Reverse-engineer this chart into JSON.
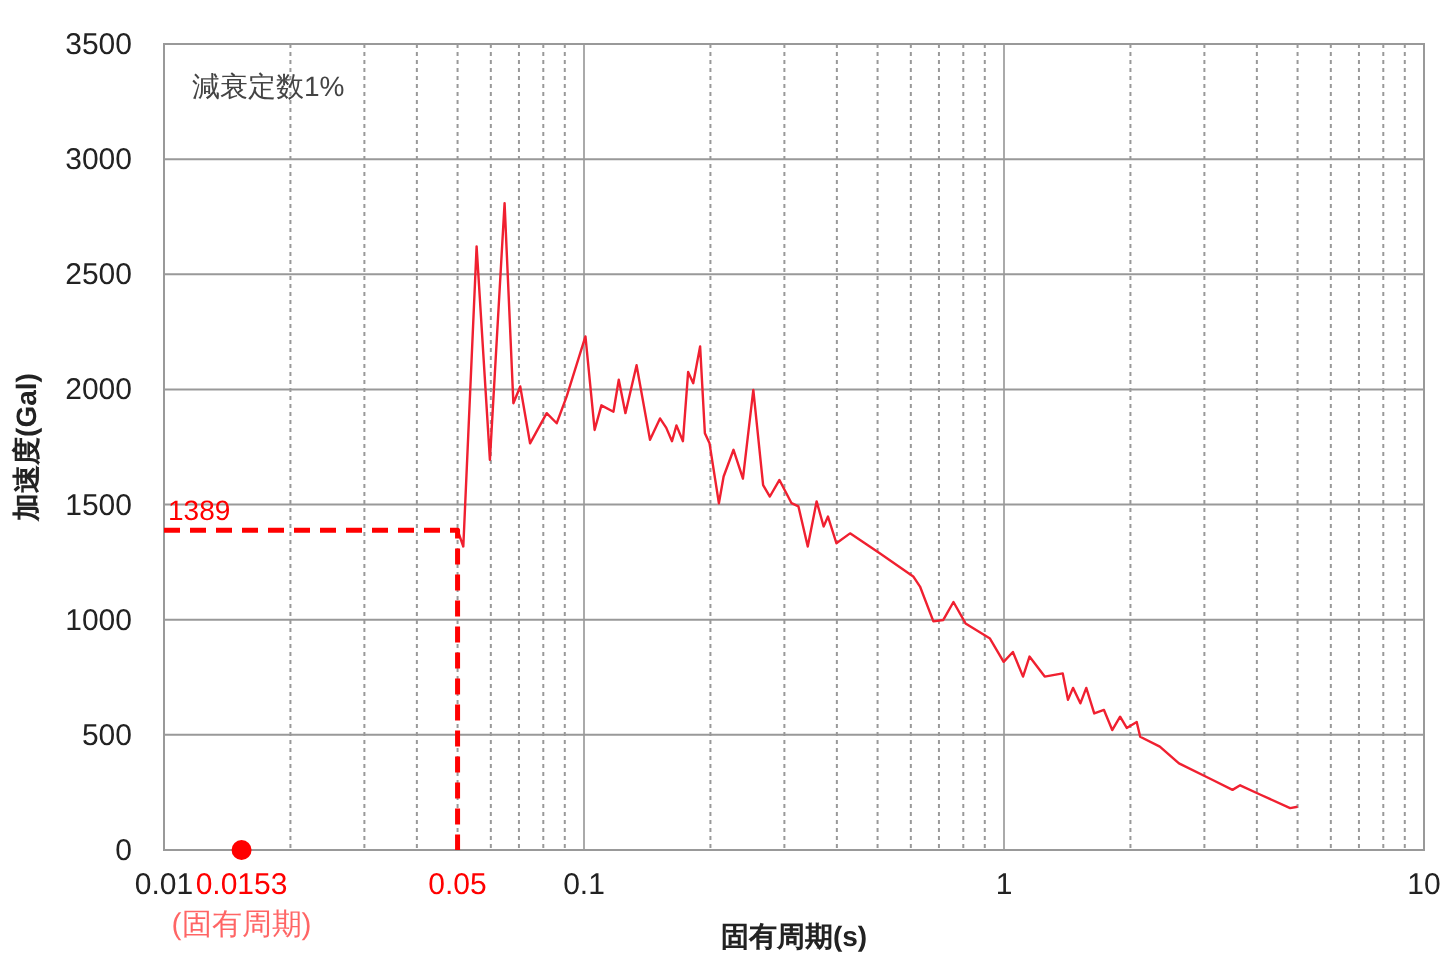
{
  "chart_data": {
    "type": "line",
    "xlabel": "固有周期(s)",
    "ylabel": "加速度(Gal)",
    "log": "x",
    "grid": true,
    "xlim": [
      0.01,
      10
    ],
    "ylim": [
      0,
      3500
    ],
    "xticks": [
      0.01,
      {
        "value": 0.02,
        "label": null
      },
      {
        "value": 0.03,
        "label": null
      },
      {
        "value": 0.04,
        "label": null
      },
      {
        "value": 0.05,
        "label": null
      },
      {
        "value": 0.06,
        "label": null
      },
      {
        "value": 0.07,
        "label": null
      },
      {
        "value": 0.08,
        "label": null
      },
      {
        "value": 0.09,
        "label": null
      },
      0.1,
      {
        "value": 0.2,
        "label": null
      },
      {
        "value": 0.3,
        "label": null
      },
      {
        "value": 0.4,
        "label": null
      },
      {
        "value": 0.5,
        "label": null
      },
      {
        "value": 0.6,
        "label": null
      },
      {
        "value": 0.7,
        "label": null
      },
      {
        "value": 0.8,
        "label": null
      },
      {
        "value": 0.9,
        "label": null
      },
      1,
      {
        "value": 2,
        "label": null
      },
      {
        "value": 3,
        "label": null
      },
      {
        "value": 4,
        "label": null
      },
      {
        "value": 5,
        "label": null
      },
      {
        "value": 6,
        "label": null
      },
      {
        "value": 7,
        "label": null
      },
      {
        "value": 8,
        "label": null
      },
      {
        "value": 9,
        "label": null
      },
      10
    ],
    "yticks": [
      0,
      500,
      1000,
      1500,
      2000,
      2500,
      3000,
      3500
    ],
    "annotations": [
      "減衰定数1%",
      {
        "text": "1389",
        "x": 0.01,
        "y": 1389
      },
      {
        "text": "0.0153",
        "x": 0.0153,
        "y": 0
      },
      {
        "text": "(固有周期)",
        "x": 0.0153,
        "y": 0
      },
      {
        "text": "0.05",
        "x": 0.05,
        "y": 0
      }
    ],
    "series": [
      {
        "color": "#f02030",
        "line_style": "solid",
        "x": [
          0.05,
          0.0516,
          0.0555,
          0.0597,
          0.0647,
          0.0679,
          0.0705,
          0.0744,
          0.0815,
          0.0861,
          0.0909,
          0.1008,
          0.106,
          0.11,
          0.1175,
          0.121,
          0.1255,
          0.1334,
          0.1436,
          0.1517,
          0.157,
          0.162,
          0.166,
          0.172,
          0.177,
          0.182,
          0.189,
          0.194,
          0.199,
          0.2095,
          0.215,
          0.227,
          0.239,
          0.253,
          0.267,
          0.277,
          0.292,
          0.312,
          0.324,
          0.341,
          0.358,
          0.372,
          0.381,
          0.399,
          0.43,
          0.507,
          0.608,
          0.631,
          0.679,
          0.717,
          0.758,
          0.81,
          0.926,
          0.998,
          1.05,
          1.11,
          1.15,
          1.25,
          1.38,
          1.42,
          1.46,
          1.52,
          1.57,
          1.64,
          1.73,
          1.81,
          1.89,
          1.96,
          2.07,
          2.11,
          2.35,
          2.61,
          3.14,
          3.5,
          3.65,
          4.07,
          4.8,
          5.0
        ],
        "values": [
          1389,
          1318,
          2621,
          1694,
          2809,
          1940,
          2013,
          1766,
          1897,
          1853,
          1969,
          2230,
          1824,
          1931,
          1903,
          2042,
          1897,
          2105,
          1781,
          1874,
          1833,
          1775,
          1844,
          1775,
          2076,
          2027,
          2187,
          1810,
          1766,
          1506,
          1622,
          1738,
          1613,
          1998,
          1584,
          1535,
          1607,
          1506,
          1492,
          1318,
          1514,
          1405,
          1448,
          1332,
          1375,
          1288,
          1188,
          1144,
          993,
          999,
          1077,
          984,
          918,
          817,
          860,
          753,
          840,
          753,
          767,
          652,
          704,
          637,
          704,
          593,
          608,
          521,
          579,
          530,
          556,
          492,
          449,
          376,
          304,
          261,
          281,
          241,
          182,
          188
        ]
      },
      {
        "color": "#ff0000",
        "line_style": "dashed",
        "x": [
          0.01,
          0.05,
          0.05
        ],
        "values": [
          1389,
          1389,
          0
        ]
      },
      {
        "type": "scatter",
        "color": "#ff0000",
        "marker": "circle",
        "x": [
          0.0153
        ],
        "values": [
          0
        ]
      }
    ]
  }
}
